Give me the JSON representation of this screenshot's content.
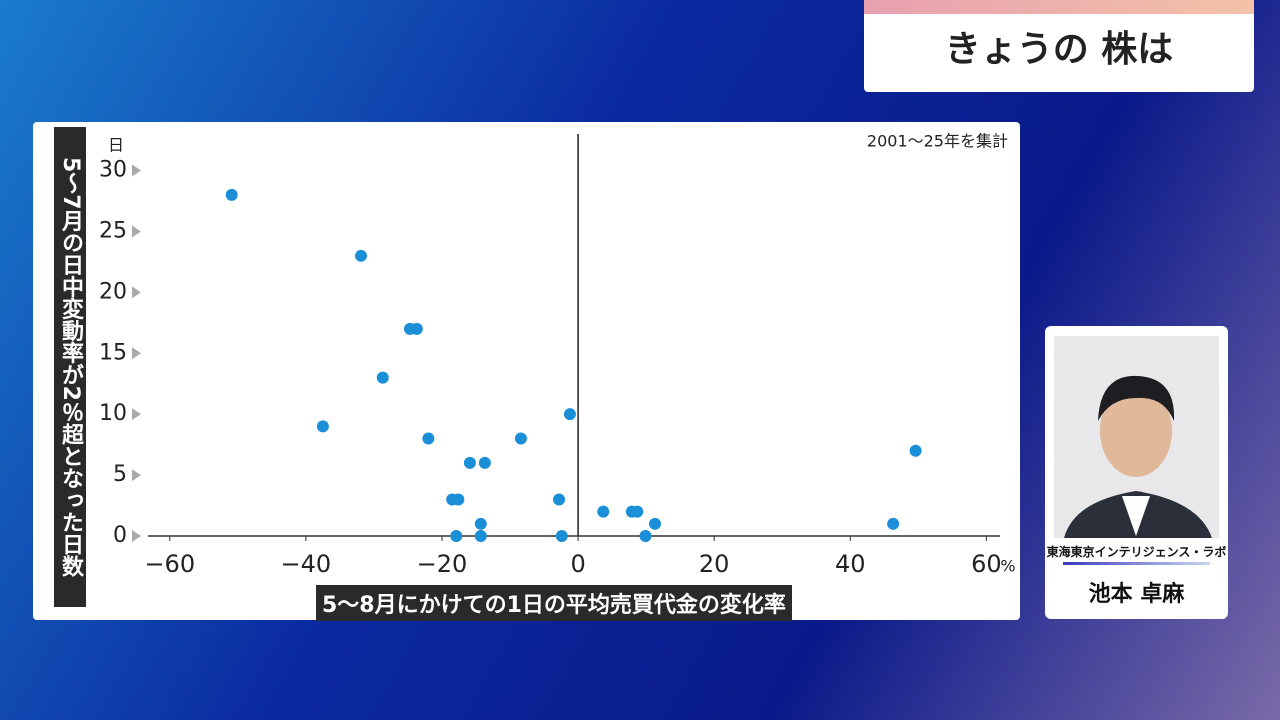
{
  "header": {
    "title": "きょうの 株は"
  },
  "presenter": {
    "affiliation": "東海東京インテリジェンス・ラボ",
    "name": "池本 卓麻"
  },
  "chart_data": {
    "type": "scatter",
    "note": "2001～25年を集計",
    "y_label": "5～7月の日中変動率が2％超となった日数",
    "x_label": "5～8月にかけての1日の平均売買代金の変化率",
    "y_unit": "日",
    "x_unit": "%",
    "color": "#1a8fd8",
    "x": [
      -50.9,
      -31.9,
      -37.5,
      -24.7,
      -23.7,
      -28.7,
      -22,
      -18.5,
      -17.6,
      -17.9,
      -15.9,
      -13.7,
      -14.3,
      -14.3,
      -8.4,
      -2.8,
      -2.4,
      -1.2,
      3.7,
      7.9,
      8.7,
      9.9,
      11.3,
      46.3,
      49.6
    ],
    "values": [
      28,
      23,
      9,
      17,
      17,
      13,
      8,
      3,
      3,
      0,
      6,
      6,
      1,
      0,
      8,
      3,
      0,
      10,
      2,
      2,
      2,
      0,
      1,
      1,
      7
    ],
    "xlim": [
      -63.2,
      62
    ],
    "ylim": [
      0,
      33
    ],
    "xticks": [
      {
        "value": -60,
        "label": "−60"
      },
      {
        "value": -40,
        "label": "−40"
      },
      {
        "value": -20,
        "label": "−20"
      },
      0,
      20,
      40,
      60
    ],
    "yticks": [
      0,
      5,
      10,
      15,
      20,
      25,
      30
    ]
  }
}
